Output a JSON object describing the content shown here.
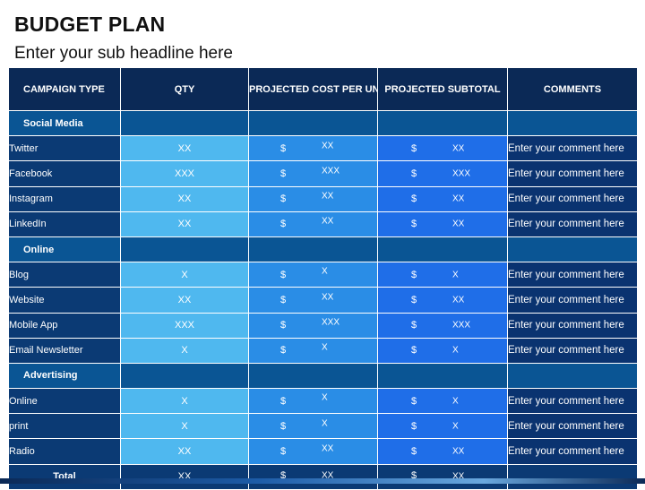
{
  "slide": {
    "title": "BUDGET PLAN",
    "subtitle": "Enter your sub headline here"
  },
  "table": {
    "headers": [
      "CAMPAIGN TYPE",
      "QTY",
      "PROJECTED COST PER UNIT",
      "PROJECTED SUBTOTAL",
      "COMMENTS"
    ],
    "currency": "$",
    "groups": [
      {
        "name": "Social Media",
        "rows": [
          {
            "name": "Twitter",
            "qty": "XX",
            "cost": "XX",
            "subtotal": "XX",
            "comment": "Enter your comment here"
          },
          {
            "name": "Facebook",
            "qty": "XXX",
            "cost": "XXX",
            "subtotal": "XXX",
            "comment": "Enter your comment here"
          },
          {
            "name": "Instagram",
            "qty": "XX",
            "cost": "XX",
            "subtotal": "XX",
            "comment": "Enter your comment here"
          },
          {
            "name": "LinkedIn",
            "qty": "XX",
            "cost": "XX",
            "subtotal": "XX",
            "comment": "Enter your comment here"
          }
        ]
      },
      {
        "name": "Online",
        "rows": [
          {
            "name": "Blog",
            "qty": "X",
            "cost": "X",
            "subtotal": "X",
            "comment": "Enter your comment here"
          },
          {
            "name": "Website",
            "qty": "XX",
            "cost": "XX",
            "subtotal": "XX",
            "comment": "Enter your comment here"
          },
          {
            "name": "Mobile App",
            "qty": "XXX",
            "cost": "XXX",
            "subtotal": "XXX",
            "comment": "Enter your comment here"
          },
          {
            "name": "Email Newsletter",
            "qty": "X",
            "cost": "X",
            "subtotal": "X",
            "comment": "Enter your comment here"
          }
        ]
      },
      {
        "name": "Advertising",
        "rows": [
          {
            "name": "Online",
            "qty": "X",
            "cost": "X",
            "subtotal": "X",
            "comment": "Enter your comment here"
          },
          {
            "name": "print",
            "qty": "X",
            "cost": "X",
            "subtotal": "X",
            "comment": "Enter your comment here"
          },
          {
            "name": "Radio",
            "qty": "XX",
            "cost": "XX",
            "subtotal": "XX",
            "comment": "Enter your comment here"
          }
        ]
      }
    ],
    "total": {
      "label": "Total",
      "qty": "XX",
      "cost": "XX",
      "subtotal": "XX"
    }
  },
  "colors": {
    "header": "#0b2956",
    "name_cell": "#0b3a74",
    "group_row": "#0a5594",
    "qty_cell": "#4fb8ef",
    "cost_cell": "#2a8de6",
    "subtotal_cell": "#1f6ee8",
    "comment_cell": "#0a3370"
  }
}
